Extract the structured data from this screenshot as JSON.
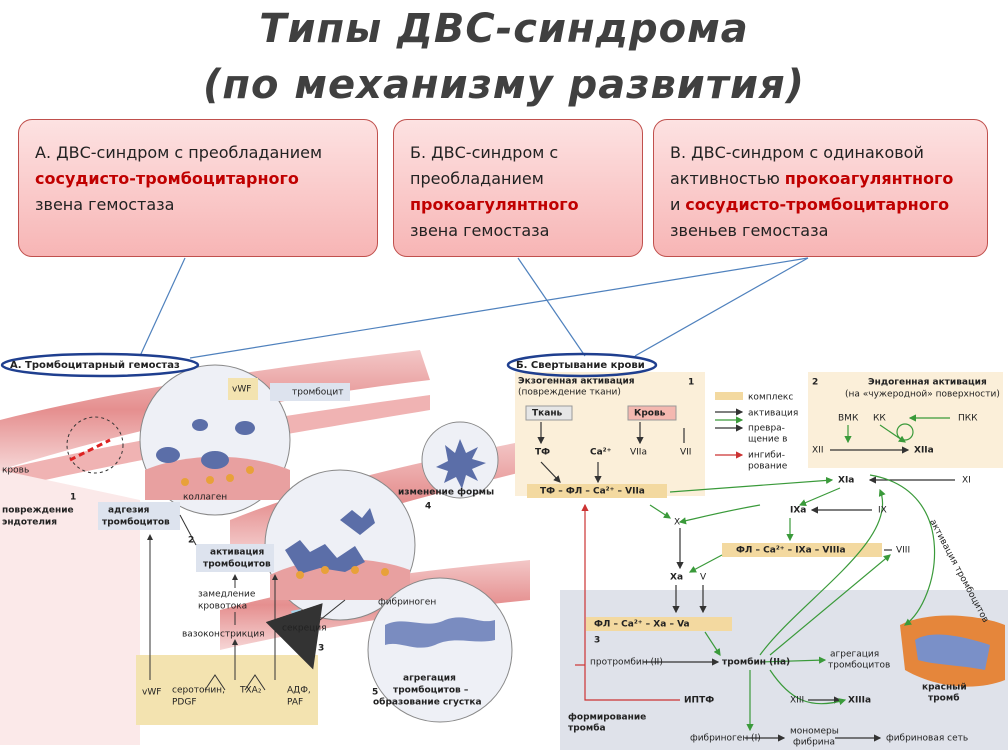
{
  "title": {
    "line1": "Типы ДВС-синдрома",
    "line2": "(по механизму развития)"
  },
  "cards": [
    {
      "lines": [
        [
          {
            "text": "А. ДВС-синдром с преобладанием"
          }
        ],
        [
          {
            "text": "сосудисто-тромбоцитарного",
            "emphasis": true
          }
        ],
        [
          {
            "text": "звена гемостаза"
          }
        ]
      ]
    },
    {
      "lines": [
        [
          {
            "text": "Б. ДВС-синдром с"
          }
        ],
        [
          {
            "text": "преобладанием"
          }
        ],
        [
          {
            "text": "прокоагулянтного",
            "emphasis": true
          }
        ],
        [
          {
            "text": "звена гемостаза"
          }
        ]
      ]
    },
    {
      "lines": [
        [
          {
            "text": "В. ДВС-синдром с одинаковой"
          }
        ],
        [
          {
            "text": "активностью"
          },
          {
            "text": "прокоагулянтного",
            "emphasis": true
          }
        ],
        [
          {
            "text": "и"
          },
          {
            "text": "сосудисто-тромбоцитарного",
            "emphasis": true
          }
        ],
        [
          {
            "text": "звеньев гемостаза"
          }
        ]
      ]
    }
  ],
  "panel_a": {
    "header": "А. Тромбоцитарный гемостаз",
    "labels": [
      "vWF",
      "тромбоцит",
      "кровь",
      "1",
      "повреждение",
      "эндотелия",
      "адгезия",
      "тромбоцитов",
      "коллаген",
      "2",
      "активация",
      "тромбоцитов",
      "замедление",
      "кровотока",
      "вазоконстрикция",
      "секреция",
      "3",
      "изменение формы",
      "4",
      "фибриноген",
      "агрегация",
      "тромбоцитов –",
      "образование сгустка",
      "5",
      "vWF",
      "серотонин,",
      "PDGF",
      "TXA₂",
      "АДФ,",
      "PAF"
    ]
  },
  "panel_b": {
    "header": "Б. Свертывание крови",
    "labels": [
      "Экзогенная активация",
      "(повреждение ткани)",
      "1",
      "Ткань",
      "Кровь",
      "ТФ",
      "Ca²⁺",
      "VIIa",
      "VII",
      "ТФ – ФЛ – Ca²⁺ – VIIa",
      "комплекс",
      "активация",
      "превра-",
      "щение в",
      "ингиби-",
      "рование",
      "2",
      "Эндогенная активация",
      "(на «чужеродной» поверхности)",
      "ВМК",
      "КК",
      "ПКК",
      "XII",
      "XIIa",
      "XIa",
      "XI",
      "IXa",
      "IX",
      "X",
      "ФЛ – Ca²⁺ – IXa – VIIIa",
      "VIII",
      "Xa",
      "V",
      "ФЛ – Ca²⁺ – Xa – Va",
      "3",
      "протромбин (II)",
      "тромбин (IIa)",
      "агрегация",
      "тромбоцитов",
      "ИПТФ",
      "XIII",
      "XIIIa",
      "красный",
      "тромб",
      "формирование",
      "тромба",
      "фибриноген (I)",
      "мономеры",
      "фибрина",
      "фибриновая сеть",
      "активация тромбоцитов"
    ]
  }
}
